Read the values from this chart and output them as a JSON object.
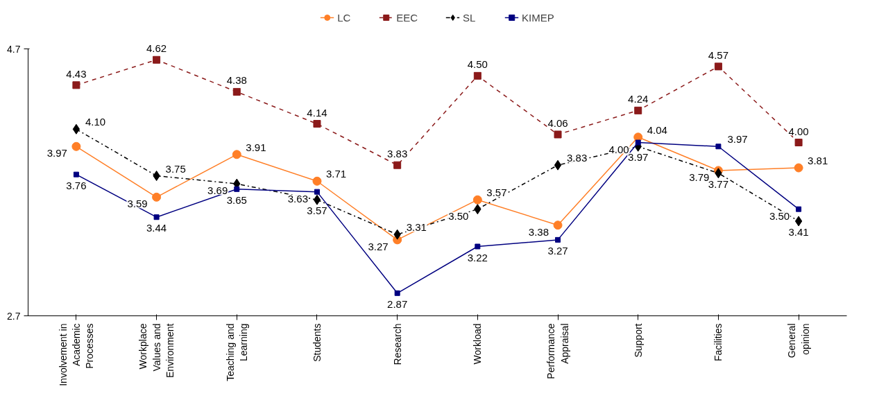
{
  "chart_data": {
    "type": "line",
    "categories": [
      "Involvement in Academic Processes",
      "Workplace Values and Environment",
      "Teaching and Learning",
      "Students",
      "Research",
      "Workload",
      "Performance Appraisal",
      "Support",
      "Facilities",
      "General opinion"
    ],
    "series": [
      {
        "name": "LC",
        "color": "#ff7f27",
        "marker": "circle",
        "line_style": "solid",
        "values": [
          3.97,
          3.59,
          3.91,
          3.71,
          3.27,
          3.57,
          3.38,
          4.04,
          3.79,
          3.81
        ],
        "value_labels": [
          "3.97",
          "3.59",
          "3.91",
          "3.71",
          "3.27",
          "3.57",
          "3.38",
          "4.04",
          "3.79",
          "3.81"
        ]
      },
      {
        "name": "EEC",
        "color": "#8b1a1a",
        "marker": "square",
        "line_style": "dashed",
        "values": [
          4.43,
          4.62,
          4.38,
          4.14,
          3.83,
          4.5,
          4.06,
          4.24,
          4.57,
          4.0
        ],
        "value_labels": [
          "4.43",
          "4.62",
          "4.38",
          "4.14",
          "3.83",
          "4.50",
          "4.06",
          "4.24",
          "4.57",
          "4.00"
        ]
      },
      {
        "name": "SL",
        "color": "#000000",
        "marker": "diamond",
        "line_style": "dashdot",
        "values": [
          4.1,
          3.75,
          3.69,
          3.57,
          3.31,
          3.5,
          3.83,
          3.97,
          3.77,
          3.41
        ],
        "value_labels": [
          "4.10",
          "3.75",
          "3.69",
          "3.57",
          "3.31",
          "3.50",
          "3.83",
          "3.97",
          "3.77",
          "3.41"
        ]
      },
      {
        "name": "KIMEP",
        "color": "#000080",
        "marker": "square",
        "line_style": "solid",
        "values": [
          3.76,
          3.44,
          3.65,
          3.63,
          2.87,
          3.22,
          3.27,
          4.0,
          3.97,
          3.5
        ],
        "value_labels": [
          "3.76",
          "3.44",
          "3.65",
          "3.63",
          "2.87",
          "3.22",
          "3.27",
          "4.00",
          "3.97",
          "3.50"
        ]
      }
    ],
    "ylim": [
      2.7,
      4.7
    ],
    "yticks": [
      2.7,
      4.7
    ],
    "grid": false,
    "legend": "top"
  }
}
